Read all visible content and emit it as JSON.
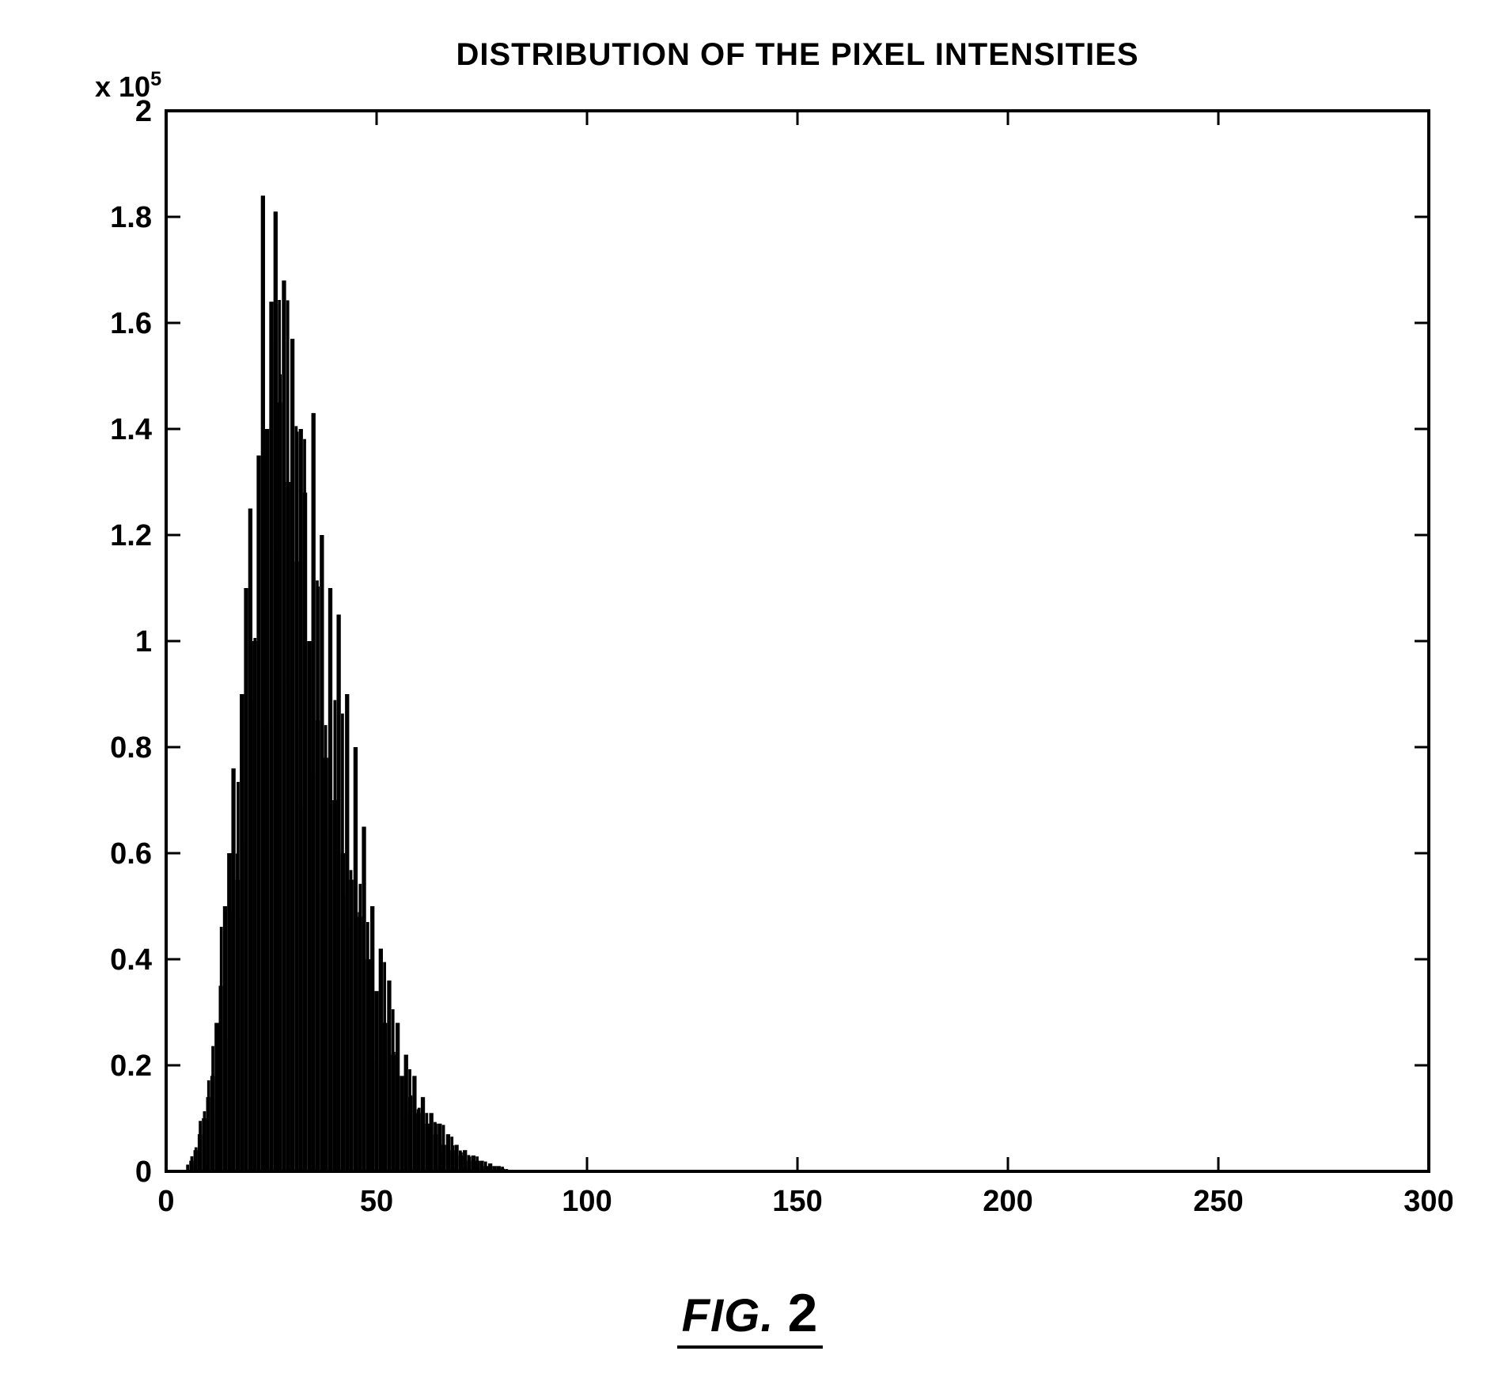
{
  "chart": {
    "type": "histogram",
    "title": "DISTRIBUTION OF THE PIXEL INTENSITIES",
    "title_fontsize": 40,
    "title_weight": 700,
    "exponent_label": "x 10",
    "exponent_power": "5",
    "exponent_fontsize": 36,
    "background_color": "#ffffff",
    "plot_border_color": "#000000",
    "plot_border_width": 4,
    "tick_color": "#000000",
    "tick_length_major": 18,
    "tick_label_fontsize": 38,
    "tick_font_weight": 600,
    "xlim": [
      0,
      300
    ],
    "ylim": [
      0,
      2.0
    ],
    "xticks": [
      0,
      50,
      100,
      150,
      200,
      250,
      300
    ],
    "yticks": [
      0,
      0.2,
      0.4,
      0.6,
      0.8,
      1.0,
      1.2,
      1.4,
      1.6,
      1.8,
      2.0
    ],
    "xtick_labels": [
      "0",
      "50",
      "100",
      "150",
      "200",
      "250",
      "300"
    ],
    "ytick_labels": [
      "0",
      "0.2",
      "0.4",
      "0.6",
      "0.8",
      "1",
      "1.2",
      "1.4",
      "1.6",
      "1.8",
      "2"
    ],
    "bar_color": "#000000",
    "bar_width": 1.0,
    "series": {
      "x": [
        6,
        7,
        8,
        9,
        10,
        11,
        12,
        13,
        14,
        15,
        16,
        17,
        18,
        19,
        20,
        21,
        22,
        23,
        24,
        25,
        26,
        27,
        28,
        29,
        30,
        31,
        32,
        33,
        34,
        35,
        36,
        37,
        38,
        39,
        40,
        41,
        42,
        43,
        44,
        45,
        46,
        47,
        48,
        49,
        50,
        51,
        52,
        53,
        54,
        55,
        56,
        57,
        58,
        59,
        60,
        61,
        62,
        63,
        64,
        65,
        66,
        67,
        68,
        69,
        70,
        71,
        72,
        73,
        74,
        75,
        76,
        77,
        78,
        79,
        80
      ],
      "y": [
        0.02,
        0.04,
        0.07,
        0.1,
        0.14,
        0.18,
        0.28,
        0.35,
        0.5,
        0.6,
        0.76,
        0.55,
        0.9,
        1.1,
        1.25,
        1.0,
        1.35,
        1.84,
        1.4,
        1.64,
        1.81,
        1.45,
        1.68,
        1.3,
        1.57,
        1.15,
        1.4,
        1.28,
        1.0,
        1.43,
        0.85,
        1.2,
        0.78,
        1.1,
        0.7,
        1.05,
        0.6,
        0.9,
        0.55,
        0.8,
        0.48,
        0.65,
        0.4,
        0.5,
        0.34,
        0.42,
        0.28,
        0.36,
        0.22,
        0.28,
        0.18,
        0.22,
        0.14,
        0.18,
        0.11,
        0.14,
        0.09,
        0.11,
        0.07,
        0.09,
        0.05,
        0.07,
        0.04,
        0.05,
        0.03,
        0.04,
        0.02,
        0.03,
        0.02,
        0.02,
        0.01,
        0.015,
        0.01,
        0.01,
        0.005
      ]
    }
  },
  "caption": {
    "prefix": "FIG.",
    "number": "2"
  }
}
